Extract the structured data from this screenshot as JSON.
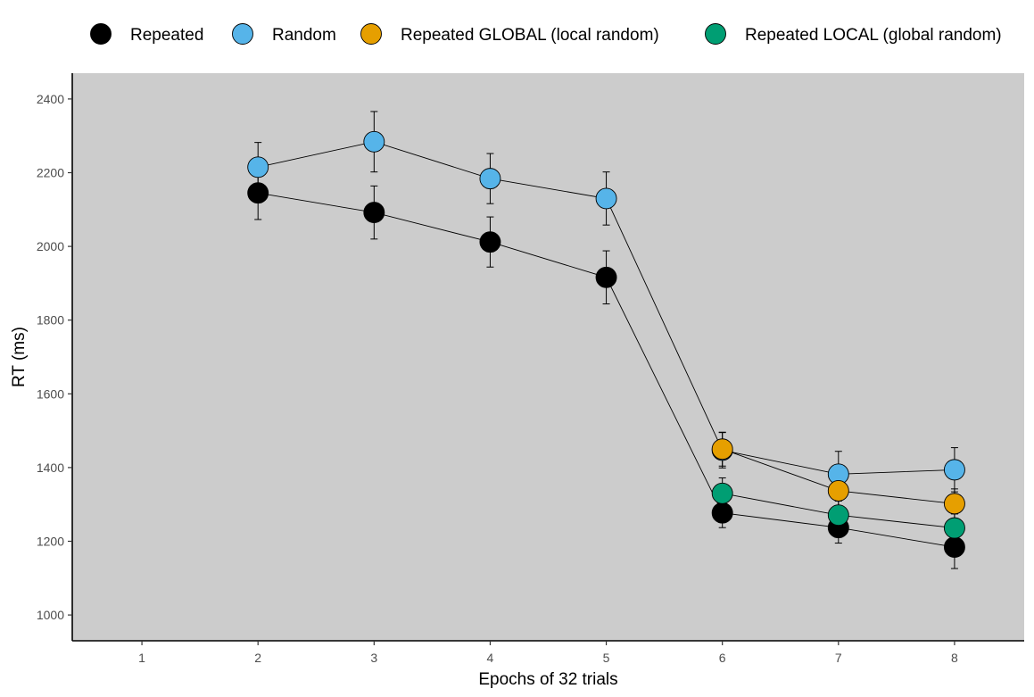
{
  "chart_data": {
    "type": "line",
    "title": "",
    "xlabel": "Epochs of 32 trials",
    "ylabel": "RT (ms)",
    "x_ticks": [
      1,
      2,
      3,
      4,
      5,
      6,
      7,
      8
    ],
    "y_ticks": [
      1000,
      1200,
      1400,
      1600,
      1800,
      2000,
      2200,
      2400
    ],
    "xlim": [
      0.4,
      8.6
    ],
    "ylim": [
      930,
      2470
    ],
    "grid": false,
    "panel_background": "#cccccc",
    "legend_position": "top",
    "series": [
      {
        "name": "Repeated",
        "color": "#000000",
        "points": [
          {
            "x": 2,
            "y": 2145,
            "err": 72
          },
          {
            "x": 3,
            "y": 2092,
            "err": 72
          },
          {
            "x": 4,
            "y": 2012,
            "err": 68
          },
          {
            "x": 5,
            "y": 1916,
            "err": 72
          },
          {
            "x": 6,
            "y": 1277,
            "err": 40
          },
          {
            "x": 7,
            "y": 1237,
            "err": 42
          },
          {
            "x": 8,
            "y": 1184,
            "err": 58
          }
        ]
      },
      {
        "name": "Random",
        "color": "#56b4e9",
        "points": [
          {
            "x": 2,
            "y": 2215,
            "err": 67
          },
          {
            "x": 3,
            "y": 2284,
            "err": 82
          },
          {
            "x": 4,
            "y": 2184,
            "err": 68
          },
          {
            "x": 5,
            "y": 2130,
            "err": 72
          },
          {
            "x": 6,
            "y": 1447,
            "err": 48
          },
          {
            "x": 7,
            "y": 1382,
            "err": 62
          },
          {
            "x": 8,
            "y": 1394,
            "err": 60
          }
        ]
      },
      {
        "name": "Repeated GLOBAL (local random)",
        "color": "#e69f00",
        "points": [
          {
            "x": 6,
            "y": 1450,
            "err": 46
          },
          {
            "x": 7,
            "y": 1337,
            "err": 40
          },
          {
            "x": 8,
            "y": 1302,
            "err": 40
          }
        ]
      },
      {
        "name": "Repeated LOCAL (global random)",
        "color": "#009e73",
        "points": [
          {
            "x": 6,
            "y": 1330,
            "err": 42
          },
          {
            "x": 7,
            "y": 1271,
            "err": 38
          },
          {
            "x": 8,
            "y": 1236,
            "err": 38
          }
        ]
      }
    ]
  }
}
